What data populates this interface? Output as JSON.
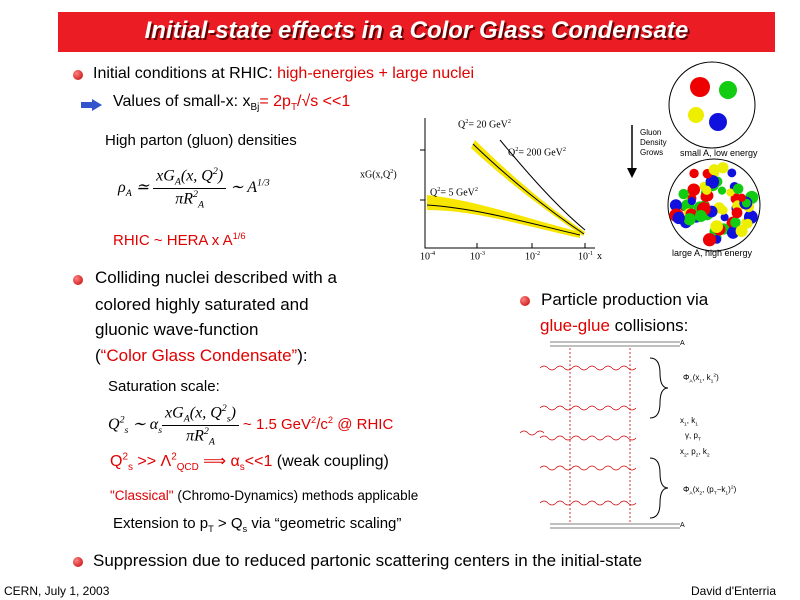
{
  "header": {
    "title": "Initial-state effects in a Color Glass Condensate"
  },
  "accent_color": "#e00000",
  "intro": [
    {
      "text": "Initial conditions at RHIC:   "
    },
    {
      "text": "high-energies + large nuclei",
      "red": true
    }
  ],
  "smallx": [
    {
      "text": "Values of small-x: x"
    },
    {
      "text": "Bj",
      "pos": "sub"
    },
    {
      "text": "= 2p",
      "red": true
    },
    {
      "text": "T",
      "pos": "sub",
      "red": true
    },
    {
      "text": "/√s <<1",
      "red": true
    }
  ],
  "densities": [
    {
      "text": "High parton (gluon) densities"
    }
  ],
  "density_formula": {
    "lhs": [
      {
        "text": "ρ"
      },
      {
        "text": "A",
        "pos": "sub"
      },
      {
        "text": " ≃ "
      }
    ],
    "num": [
      {
        "text": "xG"
      },
      {
        "text": "A",
        "pos": "sub"
      },
      {
        "text": "(x, Q"
      },
      {
        "text": "2",
        "pos": "sup"
      },
      {
        "text": ")"
      }
    ],
    "den": [
      {
        "text": "πR"
      },
      {
        "text": "2",
        "pos": "sup"
      },
      {
        "text": "A",
        "pos": "sub"
      }
    ],
    "rhs": [
      {
        "text": " ∼ A"
      },
      {
        "text": "1/3",
        "pos": "sup"
      }
    ]
  },
  "hera": [
    {
      "text": "RHIC ~ HERA x A",
      "red": true
    },
    {
      "text": "1/6",
      "pos": "sup",
      "red": true
    }
  ],
  "plot": {
    "ylabel": [
      {
        "text": "xG(x,Q"
      },
      {
        "text": "2",
        "pos": "sup"
      },
      {
        "text": ")"
      }
    ],
    "curves": [
      [
        {
          "text": "Q"
        },
        {
          "text": "2",
          "pos": "sup"
        },
        {
          "text": "= 20 GeV"
        },
        {
          "text": "2",
          "pos": "sup"
        }
      ],
      [
        {
          "text": "Q"
        },
        {
          "text": "2",
          "pos": "sup"
        },
        {
          "text": "= 200 GeV"
        },
        {
          "text": "2",
          "pos": "sup"
        }
      ],
      [
        {
          "text": "Q"
        },
        {
          "text": "2",
          "pos": "sup"
        },
        {
          "text": "= 5 GeV"
        },
        {
          "text": "2",
          "pos": "sup"
        }
      ]
    ],
    "xticks": [
      [
        {
          "text": "10"
        },
        {
          "text": "-4",
          "pos": "sup"
        }
      ],
      [
        {
          "text": "10"
        },
        {
          "text": "-3",
          "pos": "sup"
        }
      ],
      [
        {
          "text": "10"
        },
        {
          "text": "-2",
          "pos": "sup"
        }
      ],
      [
        {
          "text": "10"
        },
        {
          "text": "-1",
          "pos": "sup"
        }
      ]
    ],
    "xlabel": [
      {
        "text": "x"
      }
    ]
  },
  "nuclei": {
    "arrow_label": [
      {
        "text": "Gluon Density Grows"
      }
    ],
    "small": [
      {
        "text": "small A, low energy"
      }
    ],
    "large": [
      {
        "text": "large A, high energy"
      }
    ]
  },
  "colliding": [
    [
      {
        "text": "Colliding nuclei described with a"
      }
    ],
    [
      {
        "text": "colored highly saturated and"
      }
    ],
    [
      {
        "text": "gluonic wave-function"
      }
    ],
    [
      {
        "text": "("
      },
      {
        "text": "“Color Glass Condensate”",
        "red": true
      },
      {
        "text": "):"
      }
    ]
  ],
  "production": [
    [
      {
        "text": "Particle production via"
      }
    ],
    [
      {
        "text": "glue-glue",
        "red": true
      },
      {
        "text": " collisions:"
      }
    ]
  ],
  "diagram": {
    "top": [
      {
        "text": "A"
      }
    ],
    "phi1": [
      {
        "text": "Φ"
      },
      {
        "text": "A",
        "pos": "sub"
      },
      {
        "text": "(x"
      },
      {
        "text": "1",
        "pos": "sub"
      },
      {
        "text": ", k"
      },
      {
        "text": "1",
        "pos": "sub"
      },
      {
        "text": "2",
        "pos": "sup"
      },
      {
        "text": ")"
      }
    ],
    "k1": [
      {
        "text": "x"
      },
      {
        "text": "1",
        "pos": "sub"
      },
      {
        "text": ", k"
      },
      {
        "text": "1",
        "pos": "sub"
      }
    ],
    "photon": [
      {
        "text": "γ, p"
      },
      {
        "text": "T",
        "pos": "sub"
      }
    ],
    "k2": [
      {
        "text": "x"
      },
      {
        "text": "2",
        "pos": "sub"
      },
      {
        "text": ", p"
      },
      {
        "text": "2",
        "pos": "sub"
      },
      {
        "text": ", k"
      },
      {
        "text": "2",
        "pos": "sub"
      }
    ],
    "phi2": [
      {
        "text": "Φ"
      },
      {
        "text": "A",
        "pos": "sub"
      },
      {
        "text": "(x"
      },
      {
        "text": "2",
        "pos": "sub"
      },
      {
        "text": ", (p"
      },
      {
        "text": "T",
        "pos": "sub"
      },
      {
        "text": "−k"
      },
      {
        "text": "1",
        "pos": "sub"
      },
      {
        "text": ")"
      },
      {
        "text": "2",
        "pos": "sup"
      },
      {
        "text": ")"
      }
    ],
    "bottom": [
      {
        "text": "A"
      }
    ]
  },
  "saturation": [
    {
      "text": "Saturation scale:"
    }
  ],
  "sat_formula": {
    "lhs": [
      {
        "text": "Q"
      },
      {
        "text": "2",
        "pos": "sup"
      },
      {
        "text": "s",
        "pos": "sub"
      },
      {
        "text": " ∼ α"
      },
      {
        "text": "s",
        "pos": "sub"
      }
    ],
    "num": [
      {
        "text": "xG"
      },
      {
        "text": "A",
        "pos": "sub"
      },
      {
        "text": "(x, Q"
      },
      {
        "text": "2",
        "pos": "sup"
      },
      {
        "text": "s",
        "pos": "sub"
      },
      {
        "text": ")"
      }
    ],
    "den": [
      {
        "text": "πR"
      },
      {
        "text": "2",
        "pos": "sup"
      },
      {
        "text": "A",
        "pos": "sub"
      }
    ],
    "rhs": [
      {
        "text": " ~ 1.5 GeV",
        "red": true
      },
      {
        "text": "2",
        "pos": "sup",
        "red": true
      },
      {
        "text": "/c",
        "red": true
      },
      {
        "text": "2",
        "pos": "sup",
        "red": true
      },
      {
        "text": " @ RHIC",
        "red": true
      }
    ]
  },
  "coupling": [
    {
      "text": "Q",
      "red": true
    },
    {
      "text": "2",
      "pos": "sup",
      "red": true
    },
    {
      "text": "s",
      "pos": "sub",
      "red": true
    },
    {
      "text": " >> Λ",
      "red": true
    },
    {
      "text": "2",
      "pos": "sup",
      "red": true
    },
    {
      "text": "QCD",
      "pos": "sub",
      "red": true
    },
    {
      "text": " ⟹  α",
      "red": true
    },
    {
      "text": "s",
      "pos": "sub",
      "red": true
    },
    {
      "text": "<<1",
      "red": true
    },
    {
      "text": "  (weak coupling)"
    }
  ],
  "classical": [
    {
      "text": "\"Classical\"",
      "red": true
    },
    {
      "text": " (Chromo-Dynamics) methods applicable"
    }
  ],
  "extension": [
    {
      "text": "Extension to p"
    },
    {
      "text": "T",
      "pos": "sub"
    },
    {
      "text": " > Q"
    },
    {
      "text": "s",
      "pos": "sub"
    },
    {
      "text": " via “geometric scaling”"
    }
  ],
  "suppression": [
    {
      "text": "Suppression due to reduced partonic scattering centers in the initial-state"
    }
  ],
  "footer": {
    "left": "CERN, July 1, 2003",
    "right": "David d'Enterria"
  }
}
